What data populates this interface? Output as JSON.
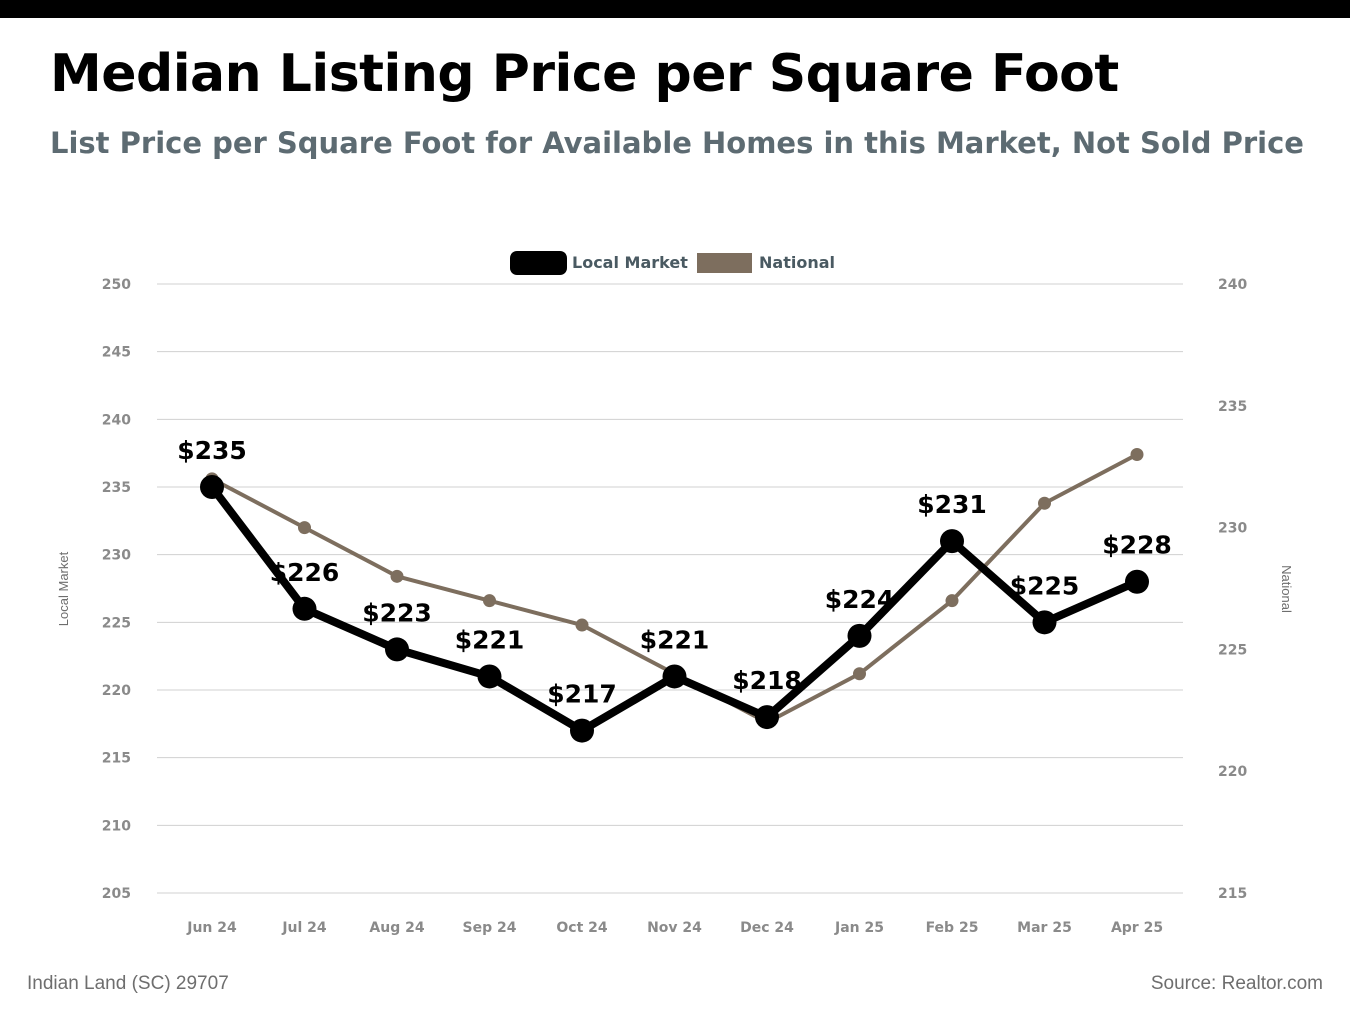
{
  "title": "Median Listing Price per Square Foot",
  "subtitle": "List Price per Square Foot for Available Homes in this Market, Not Sold Price",
  "footer": {
    "location": "Indian Land (SC) 29707",
    "source": "Source: Realtor.com"
  },
  "colors": {
    "local": "#000000",
    "national": "#7d6e5e",
    "grid": "#d0d0d0",
    "subtitle": "#5d6b72"
  },
  "chart_data": {
    "type": "line",
    "categories": [
      "Jun 24",
      "Jul 24",
      "Aug 24",
      "Sep 24",
      "Oct 24",
      "Nov 24",
      "Dec 24",
      "Jan 25",
      "Feb 25",
      "Mar 25",
      "Apr 25"
    ],
    "series": [
      {
        "name": "Local Market",
        "axis": "left",
        "values": [
          235,
          226,
          223,
          221,
          217,
          221,
          218,
          224,
          231,
          225,
          228
        ],
        "labels": [
          "$235",
          "$226",
          "$223",
          "$221",
          "$217",
          "$221",
          "$218",
          "$224",
          "$231",
          "$225",
          "$228"
        ]
      },
      {
        "name": "National",
        "axis": "right",
        "values": [
          232,
          230,
          228,
          227,
          226,
          224,
          222,
          224,
          227,
          231,
          233
        ]
      }
    ],
    "y_left": {
      "label": "Local Market",
      "range": [
        205,
        250
      ],
      "ticks": [
        "250",
        "245",
        "240",
        "235",
        "230",
        "225",
        "220",
        "215",
        "210",
        "205"
      ]
    },
    "y_right": {
      "label": "National",
      "range": [
        215,
        240
      ],
      "ticks": [
        "240",
        "235",
        "230",
        "225",
        "220",
        "215"
      ]
    },
    "grid": true,
    "legend_position": "top-center"
  }
}
